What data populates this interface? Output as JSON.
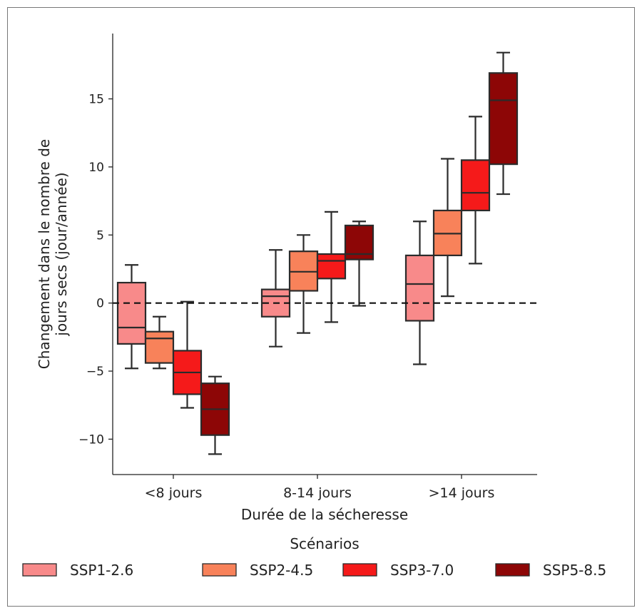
{
  "chart_data": {
    "type": "boxplot",
    "title": "",
    "xlabel": "Durée de la sécheresse",
    "ylabel_lines": [
      "Changement dans le nombre de",
      "jours secs (jour/année)"
    ],
    "categories": [
      "<8 jours",
      "8-14 jours",
      ">14 jours"
    ],
    "ylim": [
      -12.6,
      19.8
    ],
    "yticks": [
      -10,
      -5,
      0,
      5,
      10,
      15
    ],
    "ytick_labels": [
      "−10",
      "−5",
      "0",
      "5",
      "10",
      "15"
    ],
    "reference_line": 0,
    "grid": false,
    "legend": {
      "title": "Scénarios",
      "placement": "bottom"
    },
    "series": [
      {
        "name": "SSP1-2.6",
        "color": "#f88a8a",
        "boxes": [
          {
            "whisker_low": -4.8,
            "q1": -3.0,
            "median": -1.8,
            "q3": 1.5,
            "whisker_high": 2.8
          },
          {
            "whisker_low": -3.2,
            "q1": -1.0,
            "median": 0.5,
            "q3": 1.0,
            "whisker_high": 3.9
          },
          {
            "whisker_low": -4.5,
            "q1": -1.3,
            "median": 1.4,
            "q3": 3.5,
            "whisker_high": 6.0
          }
        ]
      },
      {
        "name": "SSP2-4.5",
        "color": "#f8825a",
        "boxes": [
          {
            "whisker_low": -4.8,
            "q1": -4.4,
            "median": -2.6,
            "q3": -2.1,
            "whisker_high": -1.0
          },
          {
            "whisker_low": -2.2,
            "q1": 0.9,
            "median": 2.3,
            "q3": 3.8,
            "whisker_high": 5.0
          },
          {
            "whisker_low": 0.5,
            "q1": 3.5,
            "median": 5.1,
            "q3": 6.8,
            "whisker_high": 10.6
          }
        ]
      },
      {
        "name": "SSP3-7.0",
        "color": "#f51a1a",
        "boxes": [
          {
            "whisker_low": -7.7,
            "q1": -6.7,
            "median": -5.1,
            "q3": -3.5,
            "whisker_high": 0.1
          },
          {
            "whisker_low": -1.4,
            "q1": 1.8,
            "median": 3.1,
            "q3": 3.6,
            "whisker_high": 6.7
          },
          {
            "whisker_low": 2.9,
            "q1": 6.8,
            "median": 8.1,
            "q3": 10.5,
            "whisker_high": 13.7
          }
        ]
      },
      {
        "name": "SSP5-8.5",
        "color": "#8d0606",
        "boxes": [
          {
            "whisker_low": -11.1,
            "q1": -9.7,
            "median": -7.8,
            "q3": -5.9,
            "whisker_high": -5.4
          },
          {
            "whisker_low": -0.2,
            "q1": 3.2,
            "median": 3.6,
            "q3": 5.7,
            "whisker_high": 6.0
          },
          {
            "whisker_low": 8.0,
            "q1": 10.2,
            "median": 14.9,
            "q3": 16.9,
            "whisker_high": 18.4
          }
        ]
      }
    ]
  }
}
